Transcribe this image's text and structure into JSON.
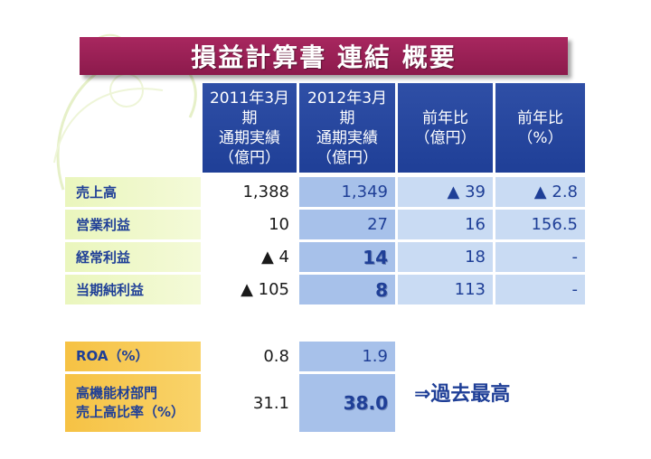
{
  "title": "損益計算書 連結 概要",
  "headers": {
    "col1": [
      "2011年3月",
      "期",
      "通期実績",
      "（億円）"
    ],
    "col2": [
      "2012年3月",
      "期",
      "通期実績",
      "（億円）"
    ],
    "col3": [
      "前年比",
      "（億円）"
    ],
    "col4": [
      "前年比",
      "（%）"
    ]
  },
  "rows": [
    {
      "label": "売上高",
      "v2011": "1,388",
      "v2012": "1,349",
      "diff": "▲ 39",
      "pct": "▲ 2.8"
    },
    {
      "label": "営業利益",
      "v2011": "10",
      "v2012": "27",
      "diff": "16",
      "pct": "156.5"
    },
    {
      "label": "経常利益",
      "v2011": "▲ 4",
      "v2012": "14",
      "diff": "18",
      "pct": "-"
    },
    {
      "label": "当期純利益",
      "v2011": "▲ 105",
      "v2012": "8",
      "diff": "113",
      "pct": "-"
    }
  ],
  "metrics": [
    {
      "label": "ROA（%）",
      "v2011": "0.8",
      "v2012": "1.9"
    },
    {
      "label_lines": [
        "高機能材部門",
        "売上高比率（%）"
      ],
      "v2011": "31.1",
      "v2012": "38.0"
    }
  ],
  "note": "⇒過去最高",
  "colors": {
    "title_bg": "#8c1a4c",
    "header_bg": "#1f3f97",
    "label_bg": "#eaf6bd",
    "metric_label_bg": "#f6c244",
    "text_blue": "#1f3f97"
  }
}
